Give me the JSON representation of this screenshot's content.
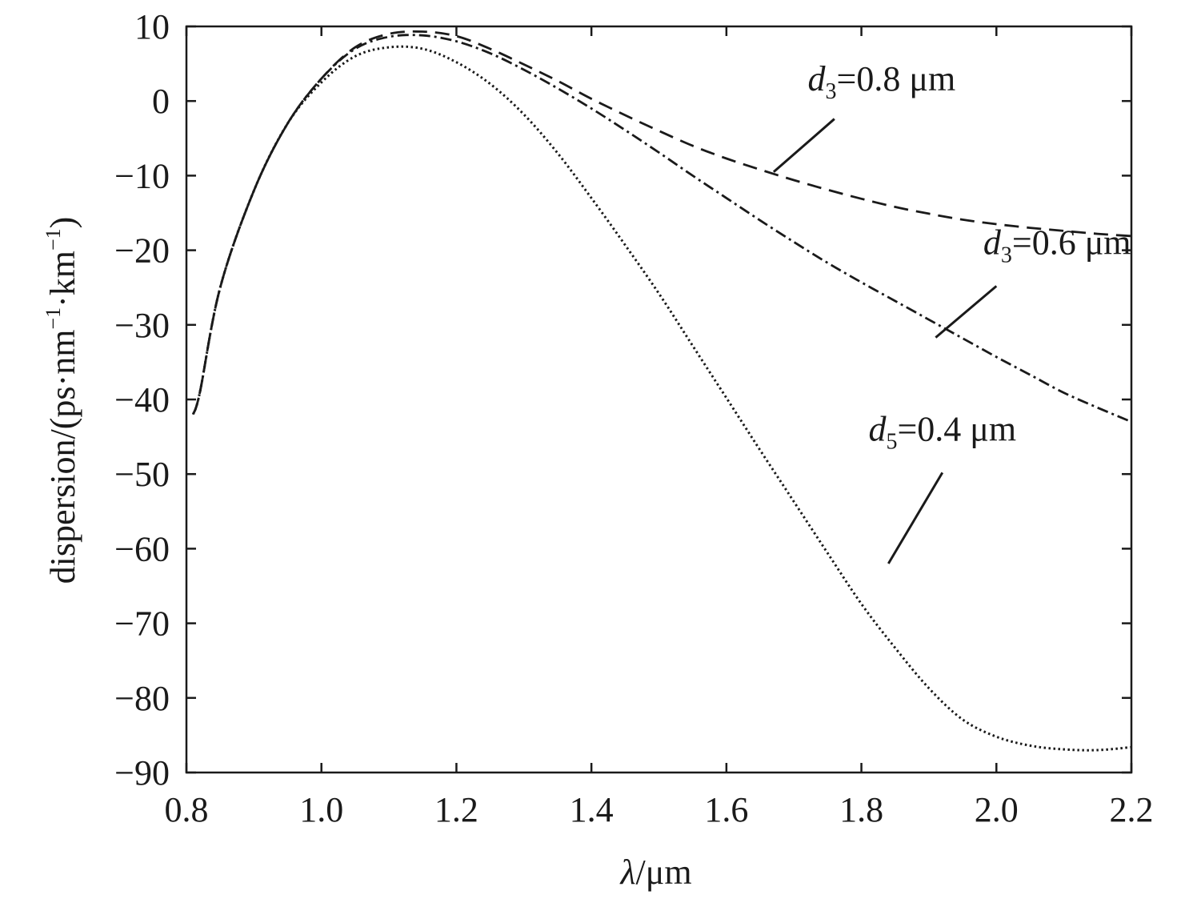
{
  "chart_data": {
    "type": "line",
    "title": "",
    "xlabel": "λ/μm",
    "xlabel_parts": {
      "italic": "λ",
      "rest": "/μm"
    },
    "ylabel": "dispersion/(ps·nm⁻¹·km⁻¹)",
    "ylabel_parts": {
      "pre": "dispersion/(ps·nm",
      "sup1": "−1",
      "mid": "·km",
      "sup2": "−1",
      "post": ")"
    },
    "xlim": [
      0.8,
      2.2
    ],
    "ylim": [
      -90,
      10
    ],
    "x_ticks": [
      0.8,
      1.0,
      1.2,
      1.4,
      1.6,
      1.8,
      2.0,
      2.2
    ],
    "x_tick_labels": [
      "0.8",
      "1.0",
      "1.2",
      "1.4",
      "1.6",
      "1.8",
      "2.0",
      "2.2"
    ],
    "y_ticks": [
      10,
      0,
      -10,
      -20,
      -30,
      -40,
      -50,
      -60,
      -70,
      -80,
      -90
    ],
    "y_tick_labels": [
      "10",
      "0",
      "−10",
      "−20",
      "−30",
      "−40",
      "−50",
      "−60",
      "−70",
      "−80",
      "−90"
    ],
    "grid": false,
    "legend": "none",
    "series": [
      {
        "style": "dashed",
        "color": "#1a1a1a",
        "x": [
          0.81,
          0.82,
          0.85,
          0.9,
          0.95,
          1.0,
          1.05,
          1.1,
          1.15,
          1.2,
          1.25,
          1.3,
          1.35,
          1.4,
          1.45,
          1.5,
          1.55,
          1.6,
          1.65,
          1.7,
          1.75,
          1.8,
          1.85,
          1.9,
          1.95,
          2.0,
          2.05,
          2.1,
          2.15,
          2.2
        ],
        "y": [
          -42,
          -39,
          -25,
          -12,
          -3,
          3,
          7.2,
          9,
          9.3,
          8.7,
          7,
          4.9,
          2.7,
          0.3,
          -1.9,
          -4,
          -6,
          -7.7,
          -9.2,
          -10.6,
          -11.9,
          -13.1,
          -14.2,
          -15.1,
          -15.9,
          -16.5,
          -17,
          -17.4,
          -17.8,
          -18.1
        ]
      },
      {
        "style": "dashdot",
        "color": "#1a1a1a",
        "x": [
          0.81,
          0.82,
          0.85,
          0.9,
          0.95,
          1.0,
          1.05,
          1.1,
          1.15,
          1.2,
          1.25,
          1.3,
          1.35,
          1.4,
          1.45,
          1.5,
          1.55,
          1.6,
          1.65,
          1.7,
          1.75,
          1.8,
          1.85,
          1.9,
          1.95,
          2.0,
          2.05,
          2.1,
          2.15,
          2.2
        ],
        "y": [
          -42,
          -39,
          -25,
          -12,
          -3,
          3,
          7,
          8.6,
          8.8,
          8,
          6.4,
          4.2,
          1.7,
          -1,
          -3.9,
          -6.9,
          -10,
          -13,
          -16,
          -18.9,
          -21.7,
          -24.3,
          -26.8,
          -29.3,
          -31.8,
          -34.3,
          -36.7,
          -39.1,
          -41.1,
          -43
        ]
      },
      {
        "style": "dotted",
        "color": "#1a1a1a",
        "x": [
          0.81,
          0.82,
          0.85,
          0.9,
          0.95,
          1.0,
          1.05,
          1.1,
          1.15,
          1.2,
          1.25,
          1.3,
          1.35,
          1.4,
          1.45,
          1.5,
          1.55,
          1.6,
          1.65,
          1.7,
          1.75,
          1.8,
          1.85,
          1.9,
          1.95,
          2.0,
          2.05,
          2.1,
          2.15,
          2.2
        ],
        "y": [
          -42,
          -39,
          -25,
          -12,
          -3,
          2.5,
          6,
          7.2,
          7,
          5.2,
          2.3,
          -1.8,
          -7,
          -13,
          -19.3,
          -25.8,
          -32.8,
          -39.8,
          -46.8,
          -53.7,
          -60.6,
          -67.4,
          -73.3,
          -78.7,
          -82.9,
          -85.2,
          -86.4,
          -86.9,
          -87,
          -86.6
        ]
      }
    ],
    "annotations": [
      {
        "var": "d",
        "sub": "3",
        "text": "=0.8 μm",
        "x": 1.83,
        "y": 1.4,
        "arrow_from": [
          1.76,
          -2.4
        ],
        "arrow_to": [
          1.67,
          -9.5
        ]
      },
      {
        "var": "d",
        "sub": "3",
        "text": "=0.6 μm",
        "x": 2.09,
        "y": -20.5,
        "arrow_from": [
          2.0,
          -24.8
        ],
        "arrow_to": [
          1.91,
          -31.7
        ]
      },
      {
        "var": "d",
        "sub": "5",
        "text": "=0.4 μm",
        "x": 1.92,
        "y": -45.5,
        "arrow_from": [
          1.92,
          -49.8
        ],
        "arrow_to": [
          1.84,
          -62
        ]
      }
    ]
  }
}
